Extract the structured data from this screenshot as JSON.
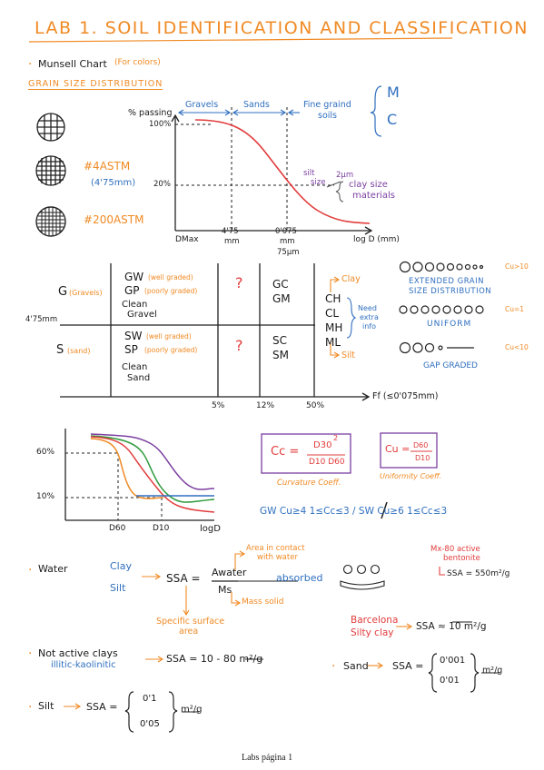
{
  "title": "LAB 1. SOIL IDENTIFICATION AND CLASSIFICATION",
  "bullet": "·",
  "munsell": {
    "label": "Munsell Chart",
    "note": "(For colors)"
  },
  "grain_section": "GRAIN SIZE DISTRIBUTION",
  "sieves": {
    "astm4": "#4ASTM",
    "astm4_size": "(4'75mm)",
    "astm200": "#200ASTM"
  },
  "gsd_chart": {
    "ylabel": "% passing",
    "y100": "100%",
    "y20": "20%",
    "xlabel": "log D (mm)",
    "dmax": "DMax",
    "x475": "4'75",
    "x475_unit": "mm",
    "x0075": "0'075",
    "x0075_unit": "mm",
    "x75um": "75μm",
    "gravels": "Gravels",
    "sands": "Sands",
    "fine_grained": "Fine graind",
    "fine_grained2": "soils",
    "silt_size": "silt",
    "silt_size2": "size",
    "two_um": "2μm",
    "clay_size": "clay size",
    "clay_size2": "materials",
    "m": "M",
    "c": "C"
  },
  "classification": {
    "g_label": "G",
    "g_note": "(Gravels)",
    "s_label": "S",
    "s_note": "(sand)",
    "boundary": "4'75mm",
    "gw": "GW",
    "gw_note": "(well graded)",
    "gp": "GP",
    "gp_note": "(poorly graded)",
    "clean_gravel": "Clean",
    "clean_gravel2": "Gravel",
    "sw": "SW",
    "sw_note": "(well graded)",
    "sp": "SP",
    "sp_note": "(poorly graded)",
    "clean_sand": "Clean",
    "clean_sand2": "Sand",
    "q1": "?",
    "q2": "?",
    "gc": "GC",
    "gm": "GM",
    "sc": "SC",
    "sm": "SM",
    "ch": "CH",
    "cl": "CL",
    "mh": "MH",
    "ml": "ML",
    "clay": "Clay",
    "silt": "Silt",
    "need": "Need",
    "extra": "extra",
    "info": "info",
    "p5": "5%",
    "p12": "12%",
    "p50": "50%",
    "ff": "Ff (≤0'075mm)"
  },
  "gradation": {
    "extended": "EXTENDED GRAIN",
    "extended2": "SIZE DISTRIBUTION",
    "cu_gt": "Cu>10",
    "uniform": "UNIFORM",
    "cu_1": "Cu=1",
    "gap": "GAP GRADED",
    "cu_lt": "Cu<10"
  },
  "curves_chart": {
    "y60": "60%",
    "y10": "10%",
    "d60": "D60",
    "d10": "D10",
    "xlabel": "logD"
  },
  "formulas": {
    "cc_lhs": "Cc =",
    "cc_num": "D30",
    "cc_sup": "2",
    "cc_den": "D10 D60",
    "cc_caption": "Curvature Coeff.",
    "cu_lhs": "Cu =",
    "cu_num": "D60",
    "cu_den": "D10",
    "cu_caption": "Uniformity Coeff.",
    "criteria": "GW  Cu≥4   1≤Cc≤3  /  SW  Cu≥6  1≤Cc≤3"
  },
  "water": {
    "label": "Water",
    "clay": "Clay",
    "silt": "Silt",
    "ssa": "SSA =",
    "awater": "Awater",
    "ms": "Ms",
    "absorbed": "absorbed",
    "area_contact": "Area in contact",
    "area_contact2": "with water",
    "mass_solid": "Mass solid",
    "specific": "Specific surface",
    "specific2": "area",
    "mx80": "Mx-80 active",
    "mx80b": "bentonite",
    "mx80_ssa": "SSA = 550m²/g",
    "barcelona": "Barcelona",
    "barcelona2": "Silty clay",
    "barcelona_ssa": "SSA ≈ 10 m²/g"
  },
  "not_active": {
    "label": "Not active clays",
    "sub": "illitic-kaolinitic",
    "ssa": "SSA = 10 - 80 m²/g"
  },
  "sand": {
    "label": "Sand",
    "ssa": "SSA =",
    "v1": "0'001",
    "v2": "0'01",
    "unit": "m²/g"
  },
  "silt": {
    "label": "Silt",
    "ssa": "SSA =",
    "v1": "0'1",
    "v2": "0'05",
    "unit": "m²/g"
  },
  "footer": "Labs página 1"
}
